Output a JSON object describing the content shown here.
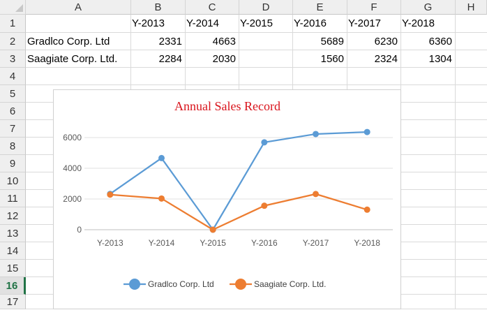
{
  "sheet": {
    "columns": [
      "A",
      "B",
      "C",
      "D",
      "E",
      "F",
      "G",
      "H"
    ],
    "rows": [
      "1",
      "2",
      "3",
      "4",
      "5",
      "6",
      "7",
      "8",
      "9",
      "10",
      "11",
      "12",
      "13",
      "14",
      "15",
      "16",
      "17"
    ],
    "active_row": "16",
    "cells": {
      "A1": "",
      "B1": "Y-2013",
      "C1": "Y-2014",
      "D1": "Y-2015",
      "E1": "Y-2016",
      "F1": "Y-2017",
      "G1": "Y-2018",
      "A2": "Gradlco Corp. Ltd",
      "B2": "2331",
      "C2": "4663",
      "D2": "",
      "E2": "5689",
      "F2": "6230",
      "G2": "6360",
      "A3": "Saagiate Corp. Ltd.",
      "B3": "2284",
      "C3": "2030",
      "D3": "",
      "E3": "1560",
      "F3": "2324",
      "G3": "1304"
    }
  },
  "chart_data": {
    "type": "line",
    "title": "Annual Sales Record",
    "categories": [
      "Y-2013",
      "Y-2014",
      "Y-2015",
      "Y-2016",
      "Y-2017",
      "Y-2018"
    ],
    "yticks": [
      "0",
      "2000",
      "4000",
      "6000"
    ],
    "ylim": [
      0,
      6000
    ],
    "grid": true,
    "legend": "bottom",
    "series": [
      {
        "name": "Gradlco Corp. Ltd",
        "color": "#5b9bd5",
        "values": [
          2331,
          4663,
          0,
          5689,
          6230,
          6360
        ]
      },
      {
        "name": "Saagiate Corp. Ltd.",
        "color": "#ed7d31",
        "values": [
          2284,
          2030,
          0,
          1560,
          2324,
          1304
        ]
      }
    ]
  }
}
